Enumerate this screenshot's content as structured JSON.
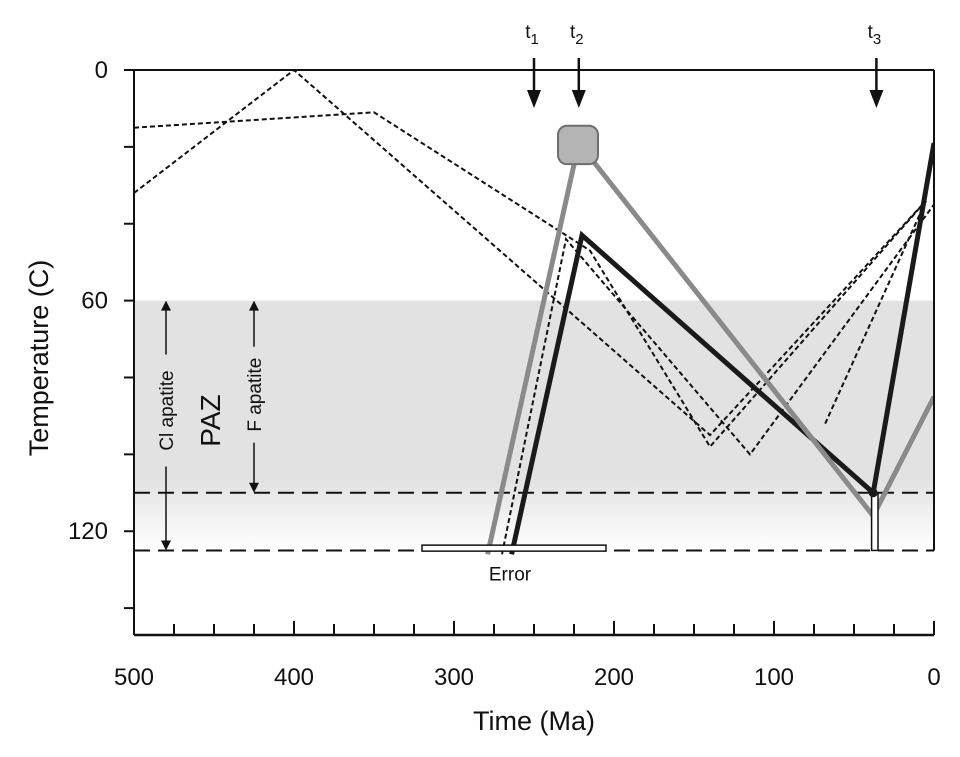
{
  "chart_data": {
    "type": "line",
    "title": "",
    "xlabel": "Time (Ma)",
    "ylabel": "Temperature (C)",
    "xlim": [
      500,
      0
    ],
    "ylim": [
      0,
      147
    ],
    "x_ticks_labeled": [
      500,
      400,
      300,
      200,
      100,
      0
    ],
    "x_minor_step": 25,
    "y_ticks_labeled": [
      0,
      60,
      120
    ],
    "y_minor_step": 20,
    "grid": false,
    "zones": [
      {
        "label": "PAZ",
        "y_from": 60,
        "y_to": 125,
        "color": "#e2e2e2"
      }
    ],
    "reference_lines": [
      {
        "y": 110,
        "style": "dashed"
      },
      {
        "y": 125,
        "style": "dashed"
      }
    ],
    "range_labels": [
      {
        "label": "Cl apatite",
        "y_from": 60,
        "y_to": 125
      },
      {
        "label": "F apatite",
        "y_from": 60,
        "y_to": 110
      }
    ],
    "markers": [
      {
        "label": "t",
        "sub": "1",
        "x": 250
      },
      {
        "label": "t",
        "sub": "2",
        "x": 222
      },
      {
        "label": "t",
        "sub": "3",
        "x": 36
      }
    ],
    "annotations": [
      {
        "text": "Error",
        "x": 265,
        "y": 131
      }
    ],
    "error_bars": [
      {
        "x_from": 320,
        "x_to": 205,
        "y": 124.4
      },
      {
        "x_from": 39,
        "x_to": 35,
        "y_from": 110,
        "y_to": 125
      }
    ],
    "constraint_box": {
      "x_from": 235,
      "x_to": 210,
      "y_from": 14.5,
      "y_to": 24.5,
      "color": "#b4b4b4"
    },
    "series": [
      {
        "style": "dashed-thin",
        "color": "#111111",
        "x": [
          500,
          350,
          215,
          140,
          5
        ],
        "y": [
          15,
          11,
          47,
          98,
          34
        ]
      },
      {
        "style": "dashed-thin",
        "color": "#111111",
        "x": [
          500,
          400,
          140,
          5
        ],
        "y": [
          32,
          0,
          95,
          34
        ]
      },
      {
        "style": "dashed-thin",
        "color": "#111111",
        "x": [
          270,
          230,
          115,
          0
        ],
        "y": [
          126,
          44,
          100,
          35
        ]
      },
      {
        "style": "dashed-thin",
        "color": "#111111",
        "x": [
          68,
          5
        ],
        "y": [
          92,
          34
        ]
      },
      {
        "style": "solid-thick",
        "color": "#1a1a1a",
        "x": [
          264,
          220,
          38,
          0
        ],
        "y": [
          126,
          43,
          110,
          19
        ]
      },
      {
        "style": "solid-thick",
        "color": "#8a8a8a",
        "x": [
          279,
          222,
          38,
          0
        ],
        "y": [
          126,
          19,
          116,
          85
        ]
      }
    ]
  }
}
